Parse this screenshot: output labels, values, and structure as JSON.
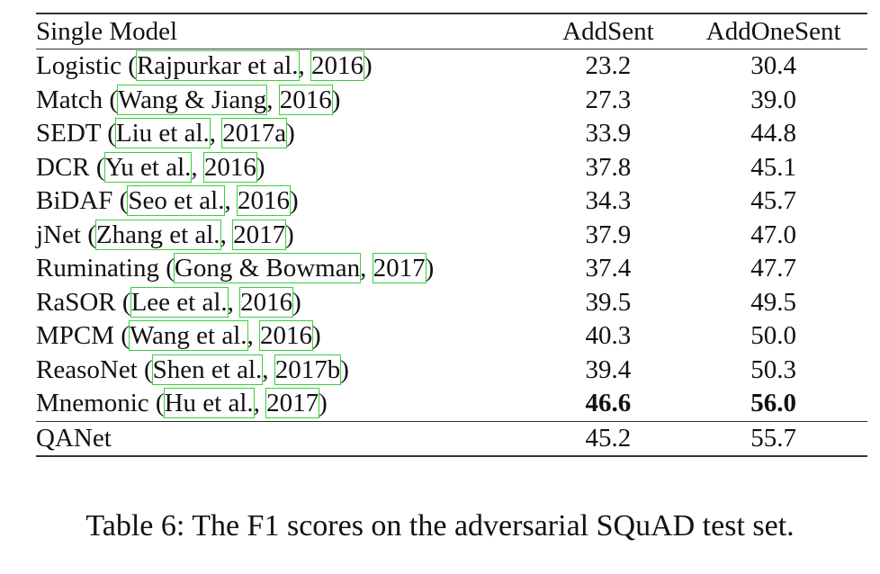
{
  "table": {
    "headers": {
      "model": "Single Model",
      "addsent": "AddSent",
      "addonesent": "AddOneSent"
    },
    "rows": [
      {
        "name": "Logistic",
        "authors": "Rajpurkar et al.",
        "year": "2016",
        "addsent": "23.2",
        "addonesent": "30.4"
      },
      {
        "name": "Match",
        "authors": "Wang & Jiang",
        "year": "2016",
        "addsent": "27.3",
        "addonesent": "39.0"
      },
      {
        "name": "SEDT",
        "authors": "Liu et al.",
        "year": "2017a",
        "addsent": "33.9",
        "addonesent": "44.8"
      },
      {
        "name": "DCR",
        "authors": "Yu et al.",
        "year": "2016",
        "addsent": "37.8",
        "addonesent": "45.1"
      },
      {
        "name": "BiDAF",
        "authors": "Seo et al.",
        "year": "2016",
        "addsent": "34.3",
        "addonesent": "45.7"
      },
      {
        "name": "jNet",
        "authors": "Zhang et al.",
        "year": "2017",
        "addsent": "37.9",
        "addonesent": "47.0"
      },
      {
        "name": "Ruminating",
        "authors": "Gong & Bowman",
        "year": "2017",
        "addsent": "37.4",
        "addonesent": "47.7"
      },
      {
        "name": "RaSOR",
        "authors": "Lee et al.",
        "year": "2016",
        "addsent": "39.5",
        "addonesent": "49.5"
      },
      {
        "name": "MPCM",
        "authors": "Wang et al.",
        "year": "2016",
        "addsent": "40.3",
        "addonesent": "50.0"
      },
      {
        "name": "ReasoNet",
        "authors": "Shen et al.",
        "year": "2017b",
        "addsent": "39.4",
        "addonesent": "50.3"
      },
      {
        "name": "Mnemonic",
        "authors": "Hu et al.",
        "year": "2017",
        "addsent": "46.6",
        "addonesent": "56.0"
      }
    ],
    "final_row": {
      "name": "QANet",
      "addsent": "45.2",
      "addonesent": "55.7"
    }
  },
  "caption": "Table 6: The F1 scores on the adversarial SQuAD test set."
}
